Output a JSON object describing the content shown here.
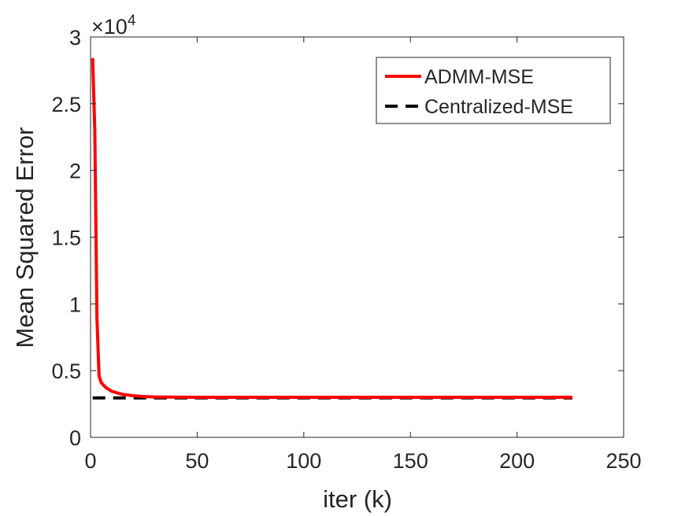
{
  "chart_data": {
    "type": "line",
    "xlabel": "iter (k)",
    "ylabel": "Mean Squared Error",
    "y_exponent_label": "×10",
    "y_exponent": "4",
    "xlim": [
      0,
      250
    ],
    "ylim": [
      0,
      3
    ],
    "x_ticks": [
      0,
      50,
      100,
      150,
      200,
      250
    ],
    "x_tick_labels": [
      "0",
      "50",
      "100",
      "150",
      "200",
      "250"
    ],
    "y_ticks": [
      0,
      0.5,
      1,
      1.5,
      2,
      2.5,
      3
    ],
    "y_tick_labels": [
      "0",
      "0.5",
      "1",
      "1.5",
      "2",
      "2.5",
      "3"
    ],
    "grid": false,
    "legend_position": "top-right",
    "series": [
      {
        "name": "ADMM-MSE",
        "color": "#ff0000",
        "line_style": "solid",
        "x": [
          1,
          2,
          3,
          4,
          5,
          7,
          10,
          15,
          20,
          25,
          30,
          40,
          50,
          100,
          150,
          200,
          226
        ],
        "y": [
          2.84,
          2.3,
          0.9,
          0.46,
          0.41,
          0.375,
          0.345,
          0.322,
          0.312,
          0.306,
          0.303,
          0.301,
          0.3,
          0.3,
          0.3,
          0.3,
          0.3
        ]
      },
      {
        "name": "Centralized-MSE",
        "color": "#000000",
        "line_style": "dashed",
        "x": [
          1,
          226
        ],
        "y": [
          0.295,
          0.295
        ]
      }
    ]
  }
}
